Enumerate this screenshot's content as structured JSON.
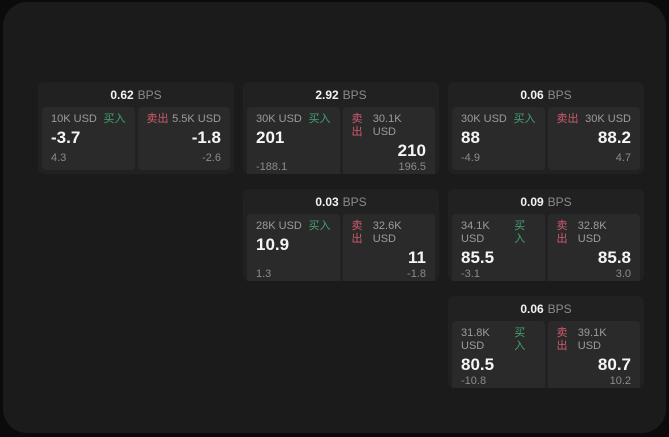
{
  "labels": {
    "buy": "买入",
    "sell": "卖出",
    "bps_unit": "BPS"
  },
  "colors": {
    "buy": "#42a374",
    "sell": "#cf5b6e",
    "panel_bg": "#1b1b1b",
    "card_bg": "#212121",
    "subcard_bg": "#2a2a2a"
  },
  "cards": [
    {
      "bps": "0.62",
      "buy": {
        "amount": "10K USD",
        "value": "-3.7",
        "delta": "4.3"
      },
      "sell": {
        "amount": "5.5K USD",
        "value": "-1.8",
        "delta": "-2.6"
      }
    },
    {
      "bps": "2.92",
      "buy": {
        "amount": "30K USD",
        "value": "201",
        "delta": "-188.1"
      },
      "sell": {
        "amount": "30.1K USD",
        "value": "210",
        "delta": "196.5"
      }
    },
    {
      "bps": "0.06",
      "buy": {
        "amount": "30K USD",
        "value": "88",
        "delta": "-4.9"
      },
      "sell": {
        "amount": "30K USD",
        "value": "88.2",
        "delta": "4.7"
      }
    },
    {
      "bps": "0.03",
      "buy": {
        "amount": "28K USD",
        "value": "10.9",
        "delta": "1.3"
      },
      "sell": {
        "amount": "32.6K USD",
        "value": "11",
        "delta": "-1.8"
      }
    },
    {
      "bps": "0.09",
      "buy": {
        "amount": "34.1K USD",
        "value": "85.5",
        "delta": "-3.1"
      },
      "sell": {
        "amount": "32.8K USD",
        "value": "85.8",
        "delta": "3.0"
      }
    },
    {
      "bps": "0.06",
      "buy": {
        "amount": "31.8K USD",
        "value": "80.5",
        "delta": "-10.8"
      },
      "sell": {
        "amount": "39.1K USD",
        "value": "80.7",
        "delta": "10.2"
      }
    }
  ]
}
